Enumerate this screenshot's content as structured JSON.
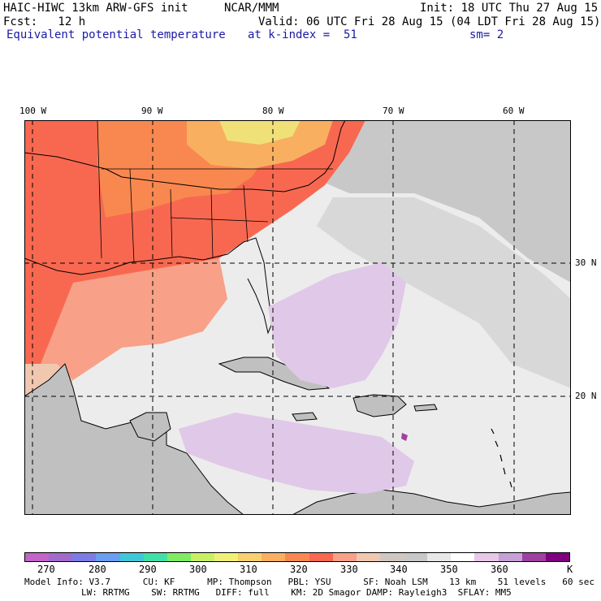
{
  "header": {
    "line1_left": "HAIC-HIWC 13km ARW-GFS init",
    "line1_mid": "NCAR/MMM",
    "line1_right": "Init: 18 UTC Thu 27 Aug 15",
    "line2_left": "Fcst:   12 h",
    "line2_right": "Valid: 06 UTC Fri 28 Aug 15 (04 LDT Fri 28 Aug 15)",
    "line3_left": "Equivalent potential temperature",
    "line3_mid": "at k-index =  51",
    "line3_right": "sm= 2"
  },
  "map": {
    "lon_labels": [
      "100 W",
      "90 W",
      "80 W",
      "70 W",
      "60 W"
    ],
    "lat_labels": [
      "30 N",
      "20 N"
    ]
  },
  "colorbar": {
    "labels": [
      "270",
      "280",
      "290",
      "300",
      "310",
      "320",
      "330",
      "340",
      "350",
      "360",
      "K"
    ],
    "colors": [
      "#c264c8",
      "#a06ccc",
      "#7c7ce6",
      "#6a9ef0",
      "#40c8d8",
      "#40e0a8",
      "#80ec64",
      "#c8f064",
      "#f0f078",
      "#f8d070",
      "#f8b060",
      "#f88850",
      "#f86850",
      "#f8a088",
      "#f0c8b0",
      "#d0c8c0",
      "#c8c8c8",
      "#e8e8e8",
      "#ffffff",
      "#e8c8e8",
      "#c8a0d8",
      "#a040a0",
      "#800080"
    ]
  },
  "footer": {
    "line1": "Model Info: V3.7      CU: KF      MP: Thompson   PBL: YSU      SF: Noah LSM    13 km    51 levels   60 sec",
    "line2": "LW: RRTMG    SW: RRTMG   DIFF: full    KM: 2D Smagor DAMP: Rayleigh3  SFLAY: MM5"
  }
}
